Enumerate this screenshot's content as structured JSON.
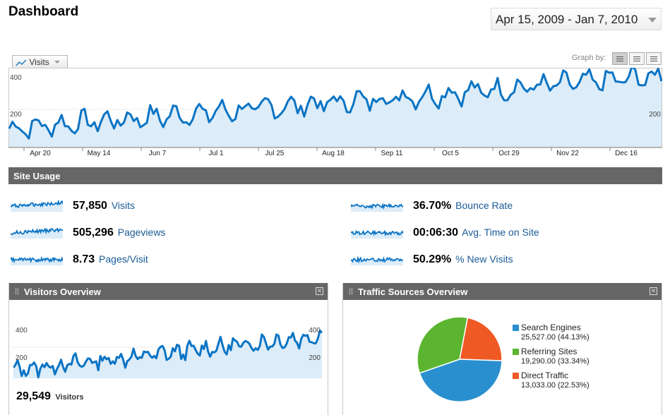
{
  "header": {
    "title": "Dashboard",
    "date_range": "Apr 15, 2009 - Jan 7, 2010"
  },
  "metric_selector": {
    "label": "Visits",
    "icon": "line-chart-icon"
  },
  "graph_by": {
    "label": "Graph by:",
    "options": [
      "day",
      "week",
      "month"
    ],
    "selected": "day"
  },
  "main_chart": {
    "x_ticks": [
      "Apr 20",
      "May 14",
      "Jun 7",
      "Jul 1",
      "Jul 25",
      "Aug 18",
      "Sep 11",
      "Oct 5",
      "Oct 29",
      "Nov 22",
      "Dec 16"
    ],
    "y_left": [
      "400",
      "200"
    ],
    "y_right": [
      "200"
    ]
  },
  "site_usage": {
    "title": "Site Usage",
    "metrics": [
      {
        "value": "57,850",
        "label": "Visits"
      },
      {
        "value": "505,296",
        "label": "Pageviews"
      },
      {
        "value": "8.73",
        "label": "Pages/Visit"
      },
      {
        "value": "36.70%",
        "label": "Bounce Rate"
      },
      {
        "value": "00:06:30",
        "label": "Avg. Time on Site"
      },
      {
        "value": "50.29%",
        "label": "% New Visits"
      }
    ]
  },
  "visitors_overview": {
    "title": "Visitors Overview",
    "y_left": [
      "400",
      "200"
    ],
    "y_right": [
      "400",
      "200"
    ],
    "total_value": "29,549",
    "total_label": "Visitors"
  },
  "traffic_sources": {
    "title": "Traffic Sources Overview",
    "sources": [
      {
        "name": "Search Engines",
        "detail": "25,527.00 (44.13%)",
        "value": 25527,
        "color": "#2a8fcf"
      },
      {
        "name": "Referring Sites",
        "detail": "19,290.00 (33.34%)",
        "value": 19290,
        "color": "#5cb531"
      },
      {
        "name": "Direct Traffic",
        "detail": "13,033.00 (22.53%)",
        "value": 13033,
        "color": "#ef5a24"
      }
    ]
  },
  "colors": {
    "line": "#0b74c4",
    "fill": "#dcecf8",
    "bar": "#666666",
    "link": "#1a5a96"
  }
}
